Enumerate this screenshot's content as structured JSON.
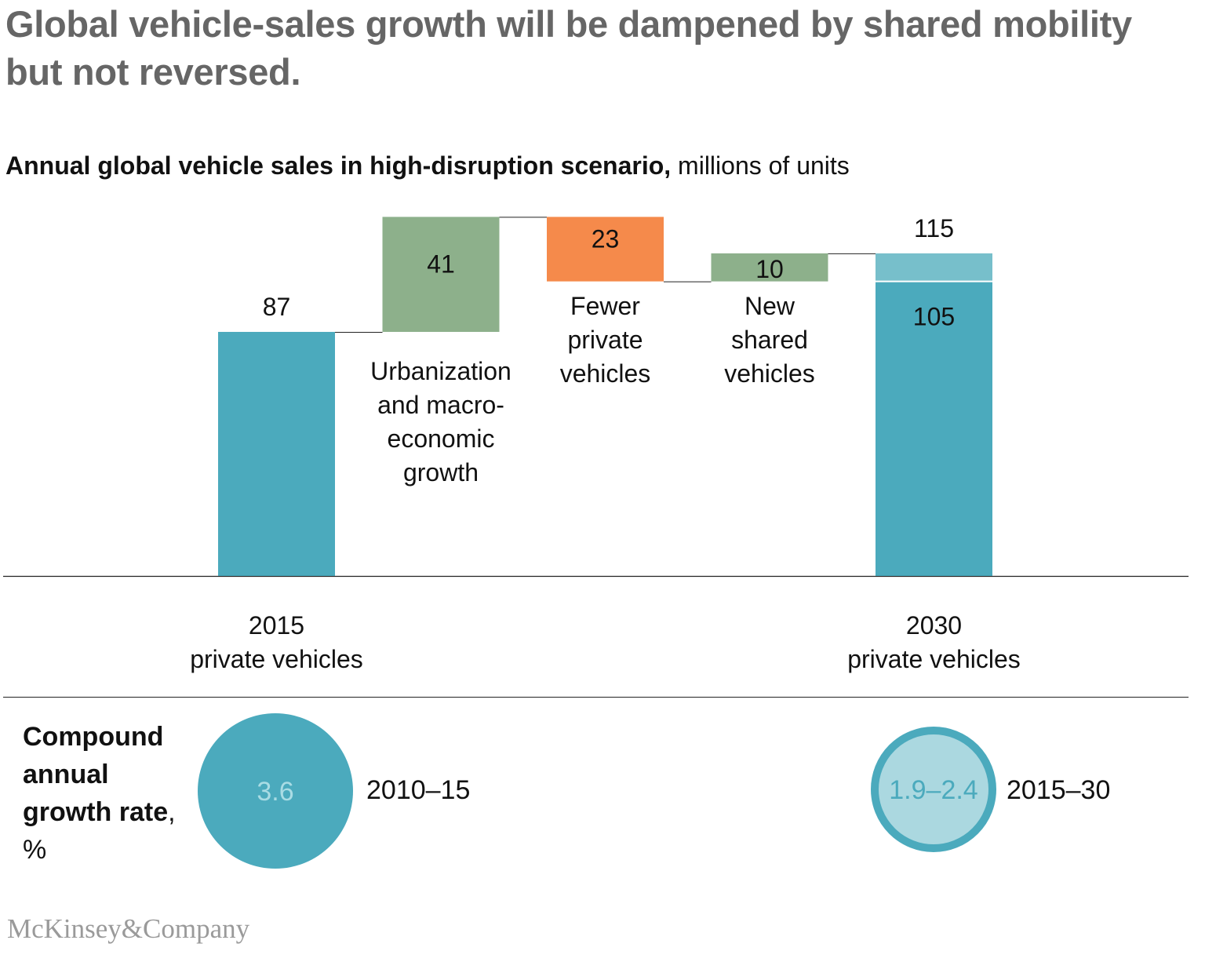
{
  "title": "Global vehicle-sales growth will be dampened by shared mobility but not reversed.",
  "subtitle_bold": "Annual global vehicle sales in high-disruption scenario,",
  "subtitle_unit": " millions of units",
  "chart_data": {
    "type": "waterfall",
    "steps": [
      {
        "label": [
          "2015",
          "private vehicles"
        ],
        "value": 87,
        "kind": "total",
        "color": "#4BAABD"
      },
      {
        "label": [
          "Urbanization",
          "and macro-",
          "economic",
          "growth"
        ],
        "value": 41,
        "kind": "increase",
        "color": "#8DB08B"
      },
      {
        "label": [
          "Fewer",
          "private",
          "vehicles"
        ],
        "value": -23,
        "kind": "decrease",
        "color": "#F58A4B"
      },
      {
        "label": [
          "New",
          "shared",
          "vehicles"
        ],
        "value": 10,
        "kind": "increase",
        "color": "#8DB08B"
      },
      {
        "label": [
          "2030",
          "private vehicles"
        ],
        "value": 115,
        "kind": "total",
        "stack": [
          {
            "value": 105,
            "color": "#4BAABD",
            "label": "105"
          },
          {
            "value": 10,
            "color": "#77BFCB"
          }
        ]
      }
    ],
    "value_labels": [
      "87",
      "41",
      "23",
      "10",
      "115"
    ]
  },
  "cagr": {
    "label_bold": "Compound annual growth rate",
    "label_unit": ", %",
    "items": [
      {
        "value": "3.6",
        "period": "2010–15",
        "style": "filled"
      },
      {
        "value": "1.9–2.4",
        "period": "2015–30",
        "style": "outlined"
      }
    ]
  },
  "logo": "McKinsey&Company"
}
